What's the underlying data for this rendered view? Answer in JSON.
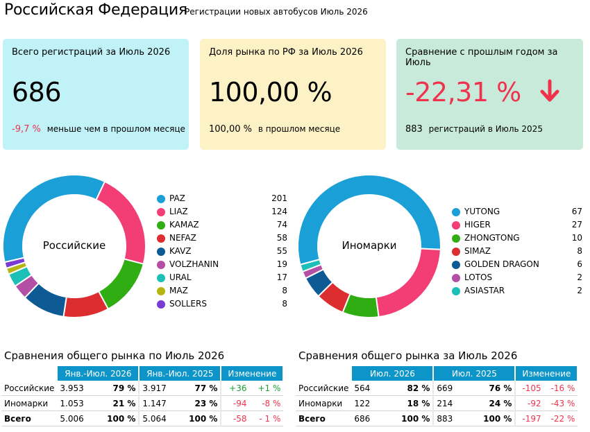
{
  "header": {
    "title": "Российская Федерация",
    "subtitle": "Регистрации новых автобусов Июль 2026"
  },
  "cards": [
    {
      "caption": "Всего регистраций за Июль 2026",
      "value": "686",
      "foot_value": "-9,7 %",
      "foot_text": "меньше чем в прошлом месяце",
      "bg": "#c0f2f7"
    },
    {
      "caption": "Доля рынка по РФ за Июль 2026",
      "value": "100,00 %",
      "foot_value": "100,00 %",
      "foot_text": "в прошлом месяце",
      "bg": "#fdf2c5"
    },
    {
      "caption": "Сравнение с прошлым годом за Июль",
      "value": "-22,31 %",
      "foot_value": "883",
      "foot_text": "регистраций в Июль 2025",
      "bg": "#c8eadb",
      "icon": "arrow-down-icon"
    }
  ],
  "chart_data": [
    {
      "type": "pie",
      "donut": true,
      "center_label": "Российские",
      "categories": [
        "PAZ",
        "LIAZ",
        "KAMAZ",
        "NEFAZ",
        "KAVZ",
        "VOLZHANIN",
        "URAL",
        "MAZ",
        "SOLLERS"
      ],
      "values": [
        201,
        124,
        74,
        58,
        55,
        19,
        17,
        8,
        8
      ],
      "colors": [
        "#1aa0d6",
        "#f33d75",
        "#2fad12",
        "#dc2d31",
        "#0d5a94",
        "#b34fa5",
        "#1cc0b6",
        "#b7b512",
        "#7a3ad4"
      ]
    },
    {
      "type": "pie",
      "donut": true,
      "center_label": "Иномарки",
      "categories": [
        "YUTONG",
        "HIGER",
        "ZHONGTONG",
        "SIMAZ",
        "GOLDEN DRAGON",
        "LOTOS",
        "ASIASTAR"
      ],
      "values": [
        67,
        27,
        10,
        8,
        6,
        2,
        2
      ],
      "colors": [
        "#1aa0d6",
        "#f33d75",
        "#2fad12",
        "#dc2d31",
        "#0d5a94",
        "#b34fa5",
        "#1cc0b6"
      ]
    }
  ],
  "table_ytd": {
    "title": "Сравнения общего рынка по Июль 2026",
    "headers": [
      "Янв.-Июл. 2026",
      "Янв.-Июл. 2025",
      "Изменение"
    ],
    "rows": [
      {
        "name": "Российские",
        "v1": "3.953",
        "p1": "79 %",
        "v2": "3.917",
        "p2": "77 %",
        "d1": "+36",
        "d2": "+1 %",
        "sign": "pos"
      },
      {
        "name": "Иномарки",
        "v1": "1.053",
        "p1": "21 %",
        "v2": "1.147",
        "p2": "23 %",
        "d1": "-94",
        "d2": "-8 %",
        "sign": "neg"
      },
      {
        "name": "Всего",
        "v1": "5.006",
        "p1": "100 %",
        "v2": "5.064",
        "p2": "100 %",
        "d1": "-58",
        "d2": "- 1 %",
        "sign": "neg"
      }
    ]
  },
  "table_month": {
    "title": "Сравнения общего рынка за Июль 2026",
    "headers": [
      "Июл. 2026",
      "Июл. 2025",
      "Изменение"
    ],
    "rows": [
      {
        "name": "Российские",
        "v1": "564",
        "p1": "82 %",
        "v2": "669",
        "p2": "76 %",
        "d1": "-105",
        "d2": "-16 %",
        "sign": "neg"
      },
      {
        "name": "Иномарки",
        "v1": "122",
        "p1": "18 %",
        "v2": "214",
        "p2": "24 %",
        "d1": "-92",
        "d2": "-43 %",
        "sign": "neg"
      },
      {
        "name": "Всего",
        "v1": "686",
        "p1": "100 %",
        "v2": "883",
        "p2": "100 %",
        "d1": "-197",
        "d2": "-22 %",
        "sign": "neg"
      }
    ]
  }
}
